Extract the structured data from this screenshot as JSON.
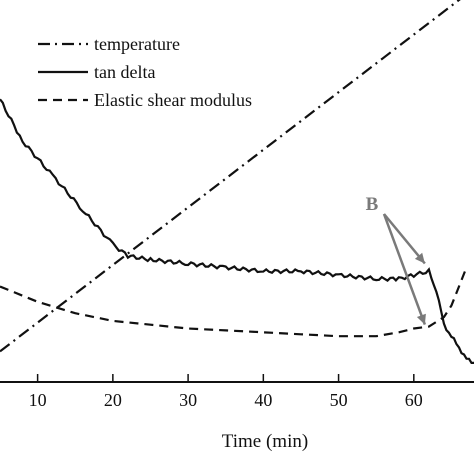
{
  "chart_data": {
    "type": "line",
    "xlabel": "Time (min)",
    "ylabel": "",
    "xlim": [
      5,
      68
    ],
    "ylim": [
      0,
      1
    ],
    "grid": false,
    "legend_placement": "top-left",
    "x_ticks": [
      10,
      20,
      30,
      40,
      50,
      60
    ],
    "series": [
      {
        "name": "temperature",
        "style": "dash-dot",
        "color": "#111111",
        "x": [
          5,
          68
        ],
        "y": [
          0.08,
          1.03
        ]
      },
      {
        "name": "tan delta",
        "style": "solid",
        "color": "#111111",
        "x": [
          5,
          8,
          12,
          16,
          20,
          22,
          25,
          30,
          35,
          40,
          45,
          50,
          55,
          58,
          60,
          62,
          63,
          64,
          65,
          66,
          67,
          68
        ],
        "y": [
          0.74,
          0.63,
          0.54,
          0.45,
          0.36,
          0.33,
          0.32,
          0.31,
          0.3,
          0.29,
          0.29,
          0.28,
          0.27,
          0.27,
          0.28,
          0.29,
          0.24,
          0.15,
          0.12,
          0.09,
          0.06,
          0.05
        ]
      },
      {
        "name": "Elastic shear modulus",
        "style": "dashed",
        "color": "#111111",
        "x": [
          5,
          10,
          15,
          20,
          25,
          30,
          35,
          40,
          45,
          50,
          55,
          58,
          60,
          62,
          64,
          65,
          66,
          67
        ],
        "y": [
          0.25,
          0.21,
          0.18,
          0.16,
          0.15,
          0.14,
          0.135,
          0.13,
          0.125,
          0.12,
          0.12,
          0.13,
          0.14,
          0.145,
          0.17,
          0.2,
          0.25,
          0.3
        ]
      }
    ],
    "annotations": [
      {
        "text": "B",
        "color": "#7a7a7a",
        "points_to": [
          [
            62,
            0.305
          ],
          [
            62,
            0.145
          ]
        ]
      }
    ]
  }
}
